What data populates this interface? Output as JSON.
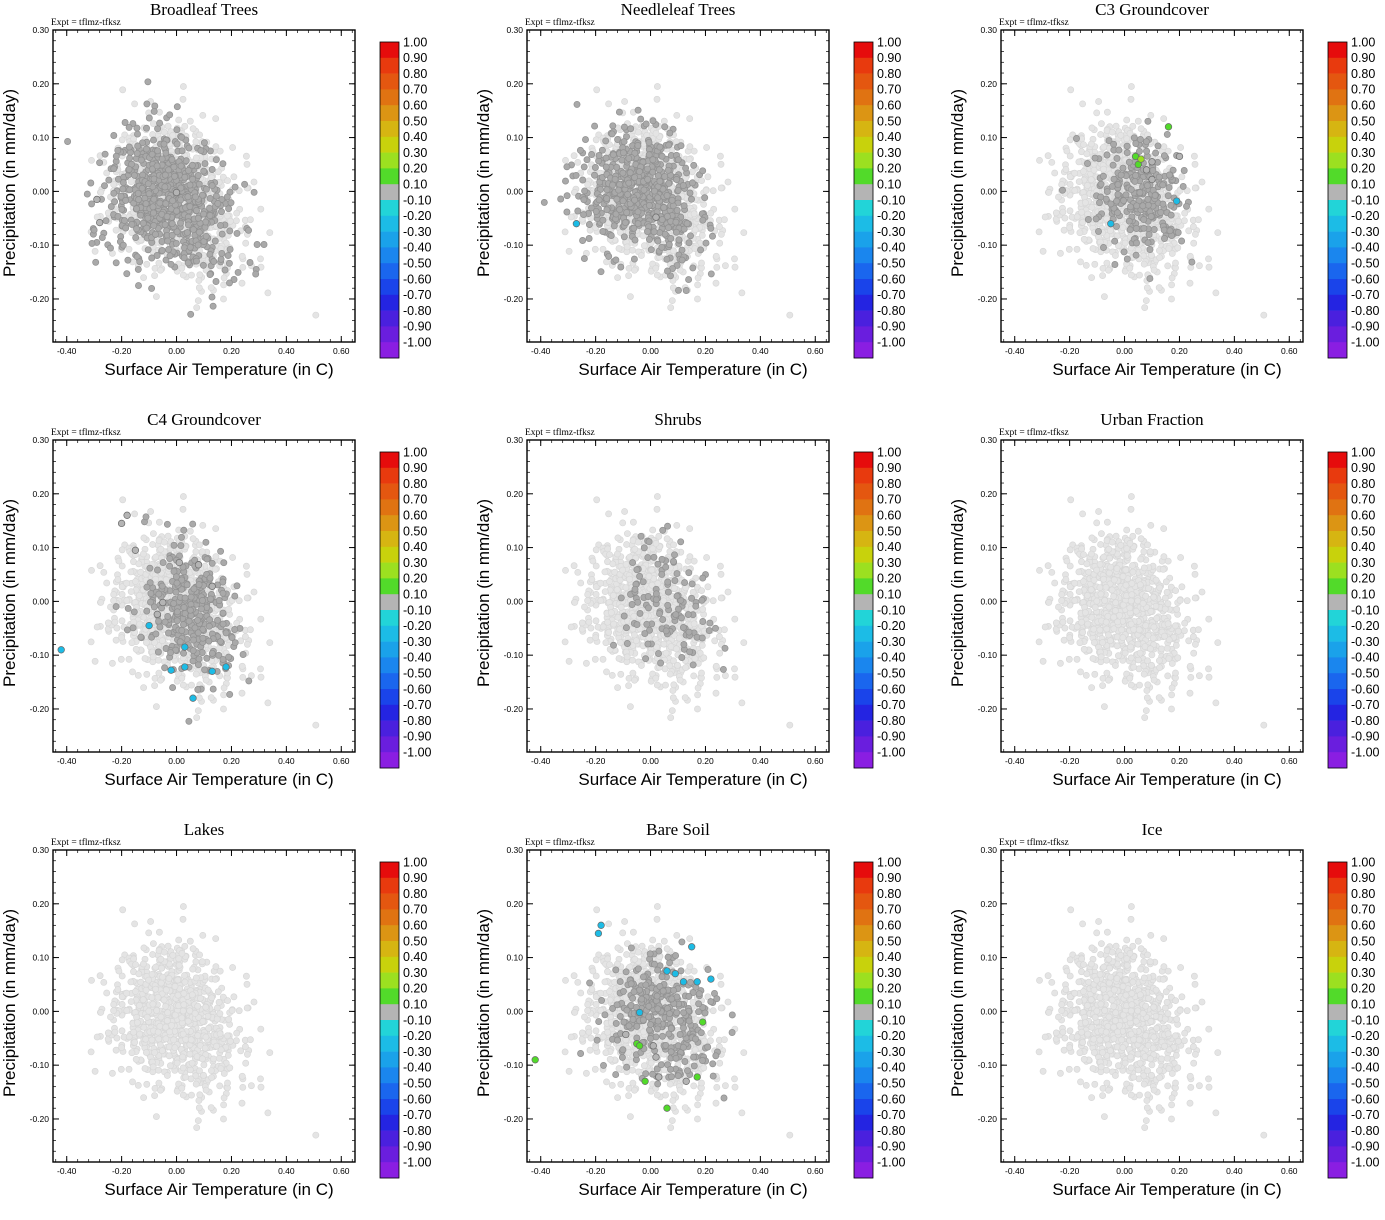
{
  "colors": {
    "point_background": "#e4e4e4",
    "point_neutral": "#a9a9a9",
    "colorbar": [
      "#e60c0c",
      "#e83a0e",
      "#e45710",
      "#e07312",
      "#dc9514",
      "#d6b512",
      "#c8d20c",
      "#9ce020",
      "#52da2a",
      "#b4b4b4",
      "#22d4d8",
      "#1cbce6",
      "#1aa2ea",
      "#1a86ee",
      "#1a66ee",
      "#1a44ea",
      "#2424e2",
      "#4a20de",
      "#6a1ede",
      "#8a1ee2"
    ]
  },
  "chart_data": [
    {
      "type": "scatter",
      "title": "Broadleaf Trees",
      "expt": "Expt = tflmz-tfksz",
      "xlabel": "Surface Air Temperature (in C)",
      "ylabel": "Precipitation (in mm/day)",
      "xlim": [
        -0.45,
        0.65
      ],
      "ylim": [
        -0.28,
        0.3
      ],
      "xticks": [
        "-0.40",
        "-0.20",
        "0.00",
        "0.20",
        "0.40",
        "0.60"
      ],
      "yticks": [
        "-0.20",
        "-0.10",
        "0.00",
        "0.10",
        "0.20",
        "0.30"
      ],
      "colorbar_labels": [
        "1.00",
        "0.90",
        "0.80",
        "0.70",
        "0.60",
        "0.50",
        "0.40",
        "0.30",
        "0.20",
        "0.10",
        "-0.10",
        "-0.20",
        "-0.30",
        "-0.40",
        "-0.50",
        "-0.60",
        "-0.70",
        "-0.80",
        "-0.90",
        "-1.00"
      ],
      "cloud": {
        "center": [
          0.0,
          0.0
        ],
        "spread": [
          0.11,
          0.065
        ],
        "n": 950,
        "seed": 11
      },
      "highlight": {
        "center": [
          -0.02,
          -0.01
        ],
        "spread": [
          0.11,
          0.065
        ],
        "n": 700,
        "seed": 12
      },
      "colored_points": [
        {
          "x": -0.29,
          "y": -0.015,
          "v": 0.1
        },
        {
          "x": -0.28,
          "y": -0.058,
          "v": 0.1
        },
        {
          "x": 0.0,
          "y": -0.002,
          "v": 0.1
        }
      ]
    },
    {
      "type": "scatter",
      "title": "Needleleaf Trees",
      "expt": "Expt = tflmz-tfksz",
      "xlabel": "Surface Air Temperature (in C)",
      "ylabel": "Precipitation (in mm/day)",
      "xlim": [
        -0.45,
        0.65
      ],
      "ylim": [
        -0.28,
        0.3
      ],
      "xticks": [
        "-0.40",
        "-0.20",
        "0.00",
        "0.20",
        "0.40",
        "0.60"
      ],
      "yticks": [
        "-0.20",
        "-0.10",
        "0.00",
        "0.10",
        "0.20",
        "0.30"
      ],
      "colorbar_labels": [
        "1.00",
        "0.90",
        "0.80",
        "0.70",
        "0.60",
        "0.50",
        "0.40",
        "0.30",
        "0.20",
        "0.10",
        "-0.10",
        "-0.20",
        "-0.30",
        "-0.40",
        "-0.50",
        "-0.60",
        "-0.70",
        "-0.80",
        "-0.90",
        "-1.00"
      ],
      "cloud": {
        "center": [
          0.0,
          0.0
        ],
        "spread": [
          0.11,
          0.065
        ],
        "n": 950,
        "seed": 11
      },
      "highlight": {
        "center": [
          -0.03,
          0.005
        ],
        "spread": [
          0.1,
          0.055
        ],
        "n": 600,
        "seed": 22
      },
      "colored_points": [
        {
          "x": -0.27,
          "y": -0.06,
          "v": -0.2
        },
        {
          "x": 0.02,
          "y": -0.048,
          "v": 0.1
        }
      ]
    },
    {
      "type": "scatter",
      "title": "C3 Groundcover",
      "expt": "Expt = tflmz-tfksz",
      "xlabel": "Surface Air Temperature (in C)",
      "ylabel": "Precipitation (in mm/day)",
      "xlim": [
        -0.45,
        0.65
      ],
      "ylim": [
        -0.28,
        0.3
      ],
      "xticks": [
        "-0.40",
        "-0.20",
        "0.00",
        "0.20",
        "0.40",
        "0.60"
      ],
      "yticks": [
        "-0.20",
        "-0.10",
        "0.00",
        "0.10",
        "0.20",
        "0.30"
      ],
      "colorbar_labels": [
        "1.00",
        "0.90",
        "0.80",
        "0.70",
        "0.60",
        "0.50",
        "0.40",
        "0.30",
        "0.20",
        "0.10",
        "-0.10",
        "-0.20",
        "-0.30",
        "-0.40",
        "-0.50",
        "-0.60",
        "-0.70",
        "-0.80",
        "-0.90",
        "-1.00"
      ],
      "cloud": {
        "center": [
          0.0,
          0.0
        ],
        "spread": [
          0.11,
          0.065
        ],
        "n": 950,
        "seed": 11
      },
      "highlight": {
        "center": [
          0.06,
          0.0
        ],
        "spread": [
          0.08,
          0.05
        ],
        "n": 260,
        "seed": 33
      },
      "colored_points": [
        {
          "x": 0.04,
          "y": 0.065,
          "v": 0.2
        },
        {
          "x": 0.05,
          "y": 0.05,
          "v": 0.2
        },
        {
          "x": 0.06,
          "y": 0.06,
          "v": 0.3
        },
        {
          "x": 0.08,
          "y": 0.04,
          "v": 0.1
        },
        {
          "x": 0.1,
          "y": 0.055,
          "v": 0.1
        },
        {
          "x": 0.1,
          "y": 0.022,
          "v": 0.1
        },
        {
          "x": 0.16,
          "y": 0.12,
          "v": 0.2
        },
        {
          "x": 0.2,
          "y": 0.065,
          "v": 0.1
        },
        {
          "x": -0.05,
          "y": -0.06,
          "v": -0.2
        },
        {
          "x": 0.19,
          "y": -0.018,
          "v": -0.2
        }
      ]
    },
    {
      "type": "scatter",
      "title": "C4 Groundcover",
      "expt": "Expt = tflmz-tfksz",
      "xlabel": "Surface Air Temperature (in C)",
      "ylabel": "Precipitation (in mm/day)",
      "xlim": [
        -0.45,
        0.65
      ],
      "ylim": [
        -0.28,
        0.3
      ],
      "xticks": [
        "-0.40",
        "-0.20",
        "0.00",
        "0.20",
        "0.40",
        "0.60"
      ],
      "yticks": [
        "-0.20",
        "-0.10",
        "0.00",
        "0.10",
        "0.20",
        "0.30"
      ],
      "colorbar_labels": [
        "1.00",
        "0.90",
        "0.80",
        "0.70",
        "0.60",
        "0.50",
        "0.40",
        "0.30",
        "0.20",
        "0.10",
        "-0.10",
        "-0.20",
        "-0.30",
        "-0.40",
        "-0.50",
        "-0.60",
        "-0.70",
        "-0.80",
        "-0.90",
        "-1.00"
      ],
      "cloud": {
        "center": [
          0.0,
          0.0
        ],
        "spread": [
          0.11,
          0.065
        ],
        "n": 950,
        "seed": 11
      },
      "highlight": {
        "center": [
          0.05,
          -0.01
        ],
        "spread": [
          0.09,
          0.065
        ],
        "n": 320,
        "seed": 44
      },
      "colored_points": [
        {
          "x": -0.2,
          "y": 0.145,
          "v": 0.1
        },
        {
          "x": -0.18,
          "y": 0.16,
          "v": 0.1
        },
        {
          "x": -0.15,
          "y": 0.095,
          "v": 0.1
        },
        {
          "x": 0.01,
          "y": 0.072,
          "v": 0.1
        },
        {
          "x": 0.08,
          "y": 0.068,
          "v": 0.1
        },
        {
          "x": 0.13,
          "y": 0.028,
          "v": 0.1
        },
        {
          "x": -0.05,
          "y": -0.002,
          "v": 0.1
        },
        {
          "x": -0.07,
          "y": -0.024,
          "v": 0.1
        },
        {
          "x": -0.1,
          "y": -0.045,
          "v": -0.2
        },
        {
          "x": -0.42,
          "y": -0.09,
          "v": -0.2
        },
        {
          "x": 0.03,
          "y": -0.085,
          "v": -0.2
        },
        {
          "x": -0.02,
          "y": -0.128,
          "v": -0.2
        },
        {
          "x": 0.03,
          "y": -0.122,
          "v": -0.2
        },
        {
          "x": 0.06,
          "y": -0.18,
          "v": -0.2
        },
        {
          "x": 0.13,
          "y": -0.13,
          "v": -0.2
        },
        {
          "x": 0.18,
          "y": -0.122,
          "v": -0.2
        }
      ]
    },
    {
      "type": "scatter",
      "title": "Shrubs",
      "expt": "Expt = tflmz-tfksz",
      "xlabel": "Surface Air Temperature (in C)",
      "ylabel": "Precipitation (in mm/day)",
      "xlim": [
        -0.45,
        0.65
      ],
      "ylim": [
        -0.28,
        0.3
      ],
      "xticks": [
        "-0.40",
        "-0.20",
        "0.00",
        "0.20",
        "0.40",
        "0.60"
      ],
      "yticks": [
        "-0.20",
        "-0.10",
        "0.00",
        "0.10",
        "0.20",
        "0.30"
      ],
      "colorbar_labels": [
        "1.00",
        "0.90",
        "0.80",
        "0.70",
        "0.60",
        "0.50",
        "0.40",
        "0.30",
        "0.20",
        "0.10",
        "-0.10",
        "-0.20",
        "-0.30",
        "-0.40",
        "-0.50",
        "-0.60",
        "-0.70",
        "-0.80",
        "-0.90",
        "-1.00"
      ],
      "cloud": {
        "center": [
          0.0,
          0.0
        ],
        "spread": [
          0.11,
          0.065
        ],
        "n": 950,
        "seed": 11
      },
      "highlight": {
        "center": [
          0.05,
          0.0
        ],
        "spread": [
          0.09,
          0.055
        ],
        "n": 120,
        "seed": 55
      },
      "colored_points": []
    },
    {
      "type": "scatter",
      "title": "Urban Fraction",
      "expt": "Expt = tflmz-tfksz",
      "xlabel": "Surface Air Temperature (in C)",
      "ylabel": "Precipitation (in mm/day)",
      "xlim": [
        -0.45,
        0.65
      ],
      "ylim": [
        -0.28,
        0.3
      ],
      "xticks": [
        "-0.40",
        "-0.20",
        "0.00",
        "0.20",
        "0.40",
        "0.60"
      ],
      "yticks": [
        "-0.20",
        "-0.10",
        "0.00",
        "0.10",
        "0.20",
        "0.30"
      ],
      "colorbar_labels": [
        "1.00",
        "0.90",
        "0.80",
        "0.70",
        "0.60",
        "0.50",
        "0.40",
        "0.30",
        "0.20",
        "0.10",
        "-0.10",
        "-0.20",
        "-0.30",
        "-0.40",
        "-0.50",
        "-0.60",
        "-0.70",
        "-0.80",
        "-0.90",
        "-1.00"
      ],
      "cloud": {
        "center": [
          0.0,
          0.0
        ],
        "spread": [
          0.11,
          0.065
        ],
        "n": 950,
        "seed": 11
      },
      "highlight": {
        "center": [
          0.0,
          0.0
        ],
        "spread": [
          0.1,
          0.06
        ],
        "n": 0,
        "seed": 66
      },
      "colored_points": []
    },
    {
      "type": "scatter",
      "title": "Lakes",
      "expt": "Expt = tflmz-tfksz",
      "xlabel": "Surface Air Temperature (in C)",
      "ylabel": "Precipitation (in mm/day)",
      "xlim": [
        -0.45,
        0.65
      ],
      "ylim": [
        -0.28,
        0.3
      ],
      "xticks": [
        "-0.40",
        "-0.20",
        "0.00",
        "0.20",
        "0.40",
        "0.60"
      ],
      "yticks": [
        "-0.20",
        "-0.10",
        "0.00",
        "0.10",
        "0.20",
        "0.30"
      ],
      "colorbar_labels": [
        "1.00",
        "0.90",
        "0.80",
        "0.70",
        "0.60",
        "0.50",
        "0.40",
        "0.30",
        "0.20",
        "0.10",
        "-0.10",
        "-0.20",
        "-0.30",
        "-0.40",
        "-0.50",
        "-0.60",
        "-0.70",
        "-0.80",
        "-0.90",
        "-1.00"
      ],
      "cloud": {
        "center": [
          0.0,
          0.0
        ],
        "spread": [
          0.11,
          0.065
        ],
        "n": 950,
        "seed": 11
      },
      "highlight": {
        "center": [
          0.0,
          0.0
        ],
        "spread": [
          0.1,
          0.06
        ],
        "n": 0,
        "seed": 77
      },
      "colored_points": []
    },
    {
      "type": "scatter",
      "title": "Bare Soil",
      "expt": "Expt = tflmz-tfksz",
      "xlabel": "Surface Air Temperature (in C)",
      "ylabel": "Precipitation (in mm/day)",
      "xlim": [
        -0.45,
        0.65
      ],
      "ylim": [
        -0.28,
        0.3
      ],
      "xticks": [
        "-0.40",
        "-0.20",
        "0.00",
        "0.20",
        "0.40",
        "0.60"
      ],
      "yticks": [
        "-0.20",
        "-0.10",
        "0.00",
        "0.10",
        "0.20",
        "0.30"
      ],
      "colorbar_labels": [
        "1.00",
        "0.90",
        "0.80",
        "0.70",
        "0.60",
        "0.50",
        "0.40",
        "0.30",
        "0.20",
        "0.10",
        "-0.10",
        "-0.20",
        "-0.30",
        "-0.40",
        "-0.50",
        "-0.60",
        "-0.70",
        "-0.80",
        "-0.90",
        "-1.00"
      ],
      "cloud": {
        "center": [
          0.0,
          0.0
        ],
        "spread": [
          0.11,
          0.065
        ],
        "n": 950,
        "seed": 11
      },
      "highlight": {
        "center": [
          0.04,
          0.0
        ],
        "spread": [
          0.09,
          0.055
        ],
        "n": 340,
        "seed": 88
      },
      "colored_points": [
        {
          "x": -0.19,
          "y": 0.145,
          "v": -0.2
        },
        {
          "x": -0.18,
          "y": 0.16,
          "v": -0.2
        },
        {
          "x": 0.15,
          "y": 0.12,
          "v": -0.2
        },
        {
          "x": 0.06,
          "y": 0.075,
          "v": -0.2
        },
        {
          "x": 0.09,
          "y": 0.07,
          "v": -0.2
        },
        {
          "x": 0.12,
          "y": 0.055,
          "v": -0.2
        },
        {
          "x": 0.17,
          "y": 0.055,
          "v": -0.2
        },
        {
          "x": 0.22,
          "y": 0.06,
          "v": -0.2
        },
        {
          "x": -0.04,
          "y": -0.002,
          "v": -0.2
        },
        {
          "x": -0.42,
          "y": -0.09,
          "v": 0.2
        },
        {
          "x": -0.09,
          "y": -0.043,
          "v": 0.1
        },
        {
          "x": -0.05,
          "y": -0.06,
          "v": 0.2
        },
        {
          "x": -0.04,
          "y": -0.064,
          "v": 0.2
        },
        {
          "x": 0.01,
          "y": -0.064,
          "v": 0.1
        },
        {
          "x": 0.02,
          "y": -0.085,
          "v": 0.1
        },
        {
          "x": -0.02,
          "y": -0.13,
          "v": 0.2
        },
        {
          "x": 0.03,
          "y": -0.122,
          "v": 0.1
        },
        {
          "x": 0.06,
          "y": -0.18,
          "v": 0.2
        },
        {
          "x": 0.13,
          "y": -0.13,
          "v": 0.1
        },
        {
          "x": 0.17,
          "y": -0.122,
          "v": 0.2
        },
        {
          "x": 0.19,
          "y": -0.02,
          "v": 0.2
        }
      ]
    },
    {
      "type": "scatter",
      "title": "Ice",
      "expt": "Expt = tflmz-tfksz",
      "xlabel": "Surface Air Temperature (in C)",
      "ylabel": "Precipitation (in mm/day)",
      "xlim": [
        -0.45,
        0.65
      ],
      "ylim": [
        -0.28,
        0.3
      ],
      "xticks": [
        "-0.40",
        "-0.20",
        "0.00",
        "0.20",
        "0.40",
        "0.60"
      ],
      "yticks": [
        "-0.20",
        "-0.10",
        "0.00",
        "0.10",
        "0.20",
        "0.30"
      ],
      "colorbar_labels": [
        "1.00",
        "0.90",
        "0.80",
        "0.70",
        "0.60",
        "0.50",
        "0.40",
        "0.30",
        "0.20",
        "0.10",
        "-0.10",
        "-0.20",
        "-0.30",
        "-0.40",
        "-0.50",
        "-0.60",
        "-0.70",
        "-0.80",
        "-0.90",
        "-1.00"
      ],
      "cloud": {
        "center": [
          0.0,
          0.0
        ],
        "spread": [
          0.11,
          0.065
        ],
        "n": 950,
        "seed": 11
      },
      "highlight": {
        "center": [
          0.0,
          0.0
        ],
        "spread": [
          0.1,
          0.06
        ],
        "n": 0,
        "seed": 99
      },
      "colored_points": []
    }
  ]
}
